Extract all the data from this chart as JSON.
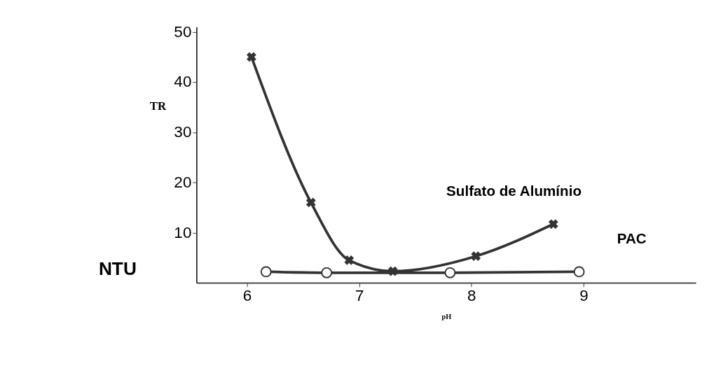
{
  "chart_data": {
    "type": "line",
    "xlabel": "pH",
    "ylabel": "TR",
    "annotations": [
      "NTU"
    ],
    "xlim": [
      5.55,
      10
    ],
    "xticks": [
      6,
      7,
      8,
      9
    ],
    "ylim": [
      0,
      51
    ],
    "yticks": [
      10,
      20,
      30,
      40,
      50
    ],
    "grid": false,
    "legend": false,
    "line_style": "solid",
    "series": [
      {
        "name": "Sulfato de Alumínio",
        "color": "#333333",
        "marker": "cross",
        "x": [
          6.04,
          6.57,
          6.91,
          7.3,
          8.04,
          8.73
        ],
        "values": [
          45,
          16,
          4.5,
          2.3,
          5.3,
          11.7
        ]
      },
      {
        "name": "PAC",
        "color": "#333333",
        "marker": "circle",
        "x": [
          6.17,
          6.71,
          7.81,
          8.96
        ],
        "values": [
          2.2,
          2,
          2,
          2.2
        ]
      }
    ]
  }
}
